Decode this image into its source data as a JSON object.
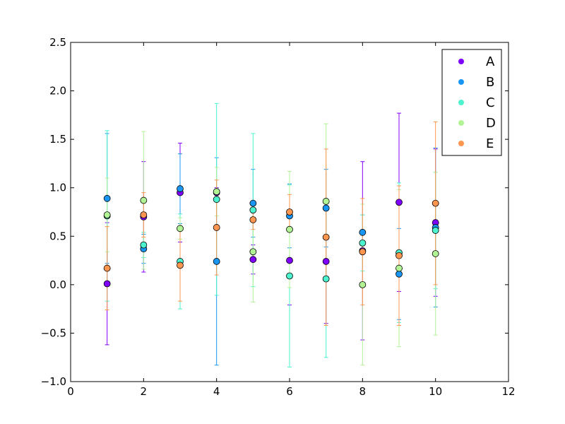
{
  "chart_data": {
    "type": "scatter",
    "title": "",
    "xlabel": "",
    "ylabel": "",
    "xlim": [
      0,
      12
    ],
    "ylim": [
      -1.0,
      2.5
    ],
    "xticks": [
      0,
      2,
      4,
      6,
      8,
      10,
      12
    ],
    "yticks": [
      -1.0,
      -0.5,
      0.0,
      0.5,
      1.0,
      1.5,
      2.0,
      2.5
    ],
    "xtick_labels": [
      "0",
      "2",
      "4",
      "6",
      "8",
      "10",
      "12"
    ],
    "ytick_labels": [
      "−1.0",
      "−0.5",
      "0.0",
      "0.5",
      "1.0",
      "1.5",
      "2.0",
      "2.5"
    ],
    "grid": false,
    "legend_position": "top-right",
    "x": [
      1,
      2,
      3,
      4,
      5,
      6,
      7,
      8,
      9,
      10
    ],
    "series": [
      {
        "name": "A",
        "color": "#8000ff",
        "y": [
          0.01,
          0.7,
          0.95,
          0.95,
          0.26,
          0.25,
          0.24,
          0.35,
          0.85,
          0.64
        ],
        "yerr": [
          0.63,
          0.57,
          0.51,
          0.05,
          0.15,
          0.46,
          0.64,
          0.92,
          0.92,
          0.76
        ]
      },
      {
        "name": "B",
        "color": "#1996f3",
        "y": [
          0.89,
          0.37,
          0.99,
          0.24,
          0.84,
          0.71,
          0.79,
          0.54,
          0.11,
          0.59
        ],
        "yerr": [
          0.67,
          0.15,
          0.36,
          1.07,
          0.35,
          0.33,
          0.4,
          0.18,
          0.47,
          0.82
        ]
      },
      {
        "name": "C",
        "color": "#4df3ce",
        "y": [
          0.71,
          0.41,
          0.24,
          0.88,
          0.77,
          0.09,
          0.06,
          0.43,
          0.33,
          0.56
        ],
        "yerr": [
          0.88,
          0.13,
          0.49,
          0.99,
          0.79,
          0.94,
          0.81,
          0.29,
          0.72,
          0.6
        ]
      },
      {
        "name": "D",
        "color": "#b2f396",
        "y": [
          0.72,
          0.87,
          0.58,
          0.96,
          0.34,
          0.57,
          0.86,
          0.0,
          0.17,
          0.32
        ],
        "yerr": [
          0.38,
          0.71,
          0.11,
          0.25,
          0.52,
          0.6,
          0.8,
          0.83,
          0.81,
          0.84
        ]
      },
      {
        "name": "E",
        "color": "#ff964f",
        "y": [
          0.17,
          0.72,
          0.2,
          0.59,
          0.67,
          0.75,
          0.49,
          0.34,
          0.3,
          0.84
        ],
        "yerr": [
          0.43,
          0.23,
          0.37,
          0.49,
          0.1,
          0.18,
          0.91,
          0.55,
          0.72,
          0.84
        ]
      }
    ]
  }
}
